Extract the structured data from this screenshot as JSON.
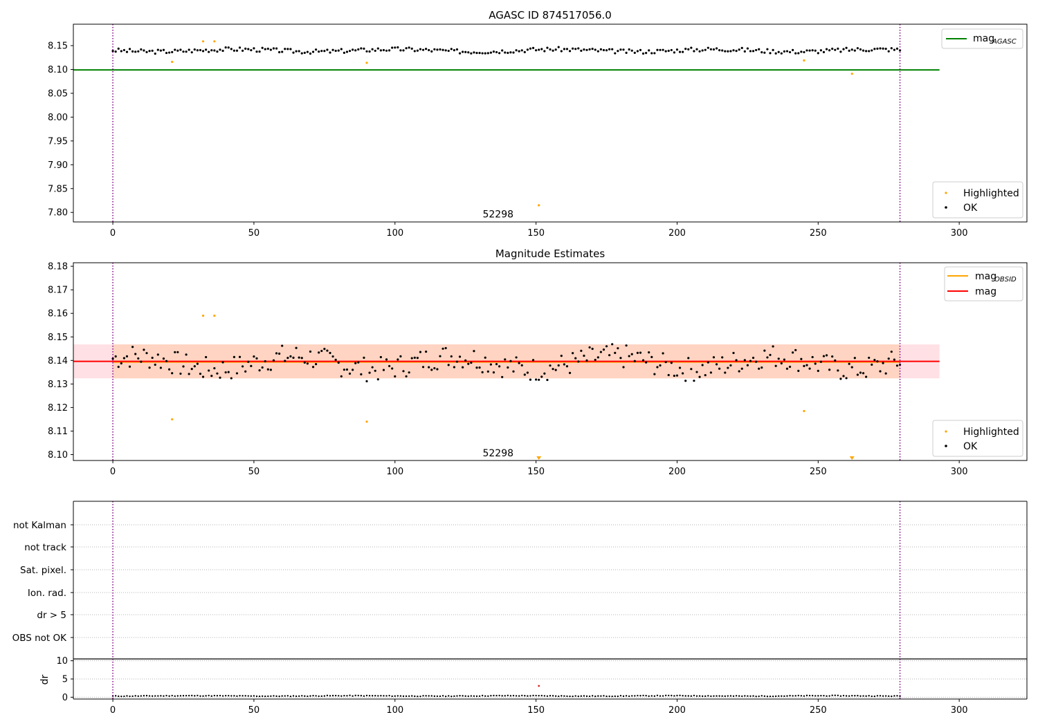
{
  "chart_data": [
    {
      "type": "scatter",
      "title": "AGASC ID 874517056.0",
      "xlabel": "",
      "ylabel": "",
      "xlim": [
        -14,
        324
      ],
      "ylim": [
        7.78,
        8.195
      ],
      "x_ticks": [
        0,
        50,
        100,
        150,
        200,
        250,
        300
      ],
      "y_ticks": [
        7.8,
        7.85,
        7.9,
        7.95,
        8.0,
        8.05,
        8.1,
        8.15
      ],
      "y_tick_labels": [
        "7.80",
        "7.85",
        "7.90",
        "7.95",
        "8.00",
        "8.05",
        "8.10",
        "8.15"
      ],
      "vlines": [
        0,
        279
      ],
      "annotation": {
        "text": "52298",
        "x": 139,
        "y": 7.795
      },
      "reference_line": {
        "name": "mag_AGASC",
        "label_main": "mag",
        "label_sub": "AGASC",
        "y": 8.099,
        "x_range": [
          -14,
          293
        ],
        "color": "#008000"
      },
      "legend_top": {
        "position": "top-right"
      },
      "legend_bottom": {
        "position": "bottom-right",
        "entries": [
          {
            "label": "Highlighted",
            "color": "#ffa500"
          },
          {
            "label": "OK",
            "color": "#000000"
          }
        ]
      },
      "highlighted_points": [
        [
          21,
          8.116
        ],
        [
          32,
          8.159
        ],
        [
          36,
          8.159
        ],
        [
          90,
          8.114
        ],
        [
          151,
          7.815
        ],
        [
          245,
          8.119
        ],
        [
          262,
          8.091
        ]
      ],
      "ok_series": {
        "x_start": 0,
        "x_end": 279,
        "mean": 8.14,
        "amplitude": 0.007,
        "color": "#000000"
      }
    },
    {
      "type": "scatter",
      "title": "Magnitude Estimates",
      "xlabel": "",
      "ylabel": "",
      "xlim": [
        -14,
        324
      ],
      "ylim": [
        8.0975,
        8.1815
      ],
      "x_ticks": [
        0,
        50,
        100,
        150,
        200,
        250,
        300
      ],
      "y_ticks": [
        8.1,
        8.11,
        8.12,
        8.13,
        8.14,
        8.15,
        8.16,
        8.17,
        8.18
      ],
      "y_tick_labels": [
        "8.10",
        "8.11",
        "8.12",
        "8.13",
        "8.14",
        "8.15",
        "8.16",
        "8.17",
        "8.18"
      ],
      "vlines": [
        0,
        279
      ],
      "annotation": {
        "text": "52298",
        "x": 139,
        "y": 8.1005
      },
      "mag_line": {
        "name": "mag",
        "y": 8.1396,
        "x_range": [
          -14,
          293
        ],
        "color": "#ff0000"
      },
      "mag_obsid_line": {
        "name": "mag_OBSID",
        "label_main": "mag",
        "label_sub": "OBSID",
        "y": 8.1393,
        "x_range": [
          0,
          279
        ],
        "color": "#ffa500"
      },
      "band_outer": {
        "y0": 8.1324,
        "y1": 8.1468,
        "x_range": [
          -14,
          293
        ],
        "color": "#ffe0e4"
      },
      "band_inner": {
        "y0": 8.1324,
        "y1": 8.1468,
        "x_range": [
          0,
          279
        ],
        "color": "#ffd4c2"
      },
      "legend_top": {
        "position": "top-right"
      },
      "legend_bottom": {
        "position": "bottom-right",
        "entries": [
          {
            "label": "Highlighted",
            "color": "#ffa500"
          },
          {
            "label": "OK",
            "color": "#000000"
          }
        ]
      },
      "highlighted_points": [
        [
          21,
          8.115
        ],
        [
          32,
          8.159
        ],
        [
          36,
          8.159
        ],
        [
          90,
          8.114
        ],
        [
          245,
          8.1185
        ]
      ],
      "highlighted_markers_clipped": [
        [
          151,
          8.098
        ],
        [
          262,
          8.098
        ]
      ],
      "ok_series": {
        "x_start": 0,
        "x_end": 279,
        "mean": 8.139,
        "amplitude": 0.008,
        "color": "#000000"
      }
    },
    {
      "type": "scatter",
      "title": "",
      "xlabel": "",
      "ylabel": "",
      "xlim": [
        -14,
        324
      ],
      "categories": [
        "not Kalman",
        "not track",
        "Sat. pixel.",
        "Ion. rad.",
        "dr > 5",
        "OBS not OK"
      ],
      "vlines": [
        0,
        279
      ]
    },
    {
      "type": "scatter",
      "title": "",
      "xlabel": "",
      "ylabel": "dr",
      "xlim": [
        -14,
        324
      ],
      "ylim": [
        -0.5,
        10.5
      ],
      "x_ticks": [
        0,
        50,
        100,
        150,
        200,
        250,
        300
      ],
      "y_ticks": [
        0,
        5,
        10
      ],
      "y_tick_labels": [
        "0",
        "5",
        "10"
      ],
      "vlines": [
        0,
        279
      ],
      "points_series": {
        "x_start": 0,
        "x_end": 279,
        "mean": 0.35,
        "amplitude": 0.15,
        "color": "#000000"
      },
      "outlier_points": [
        [
          151,
          3.1
        ]
      ],
      "outlier_color": "#d62728"
    }
  ]
}
